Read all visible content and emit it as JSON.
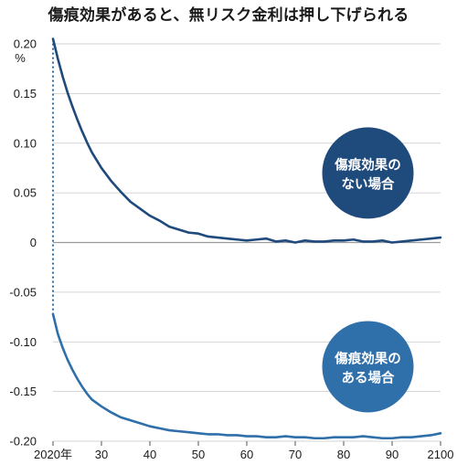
{
  "chart_data": {
    "type": "line",
    "title": "傷痕効果があると、無リスク金利は押し下げられる",
    "yunit": "%",
    "ylim": [
      -0.2,
      0.2
    ],
    "xlim": [
      2020,
      2100
    ],
    "yticks": [
      0.2,
      0.15,
      0.1,
      0.05,
      0,
      -0.05,
      -0.1,
      -0.15,
      -0.2
    ],
    "ytick_labels": [
      "0.20",
      "0.15",
      "0.10",
      "0.05",
      "0",
      "-0.05",
      "-0.10",
      "-0.15",
      "-0.20"
    ],
    "xticks": [
      2020,
      2030,
      2040,
      2050,
      2060,
      2070,
      2080,
      2090,
      2100
    ],
    "xtick_labels": [
      "2020年",
      "30",
      "40",
      "50",
      "60",
      "70",
      "80",
      "90",
      "2100"
    ],
    "grid": true,
    "series": [
      {
        "name": "傷痕効果のない場合",
        "color": "#1f4a7c",
        "x": [
          2020,
          2021,
          2022,
          2023,
          2024,
          2025,
          2026,
          2027,
          2028,
          2030,
          2032,
          2034,
          2036,
          2038,
          2040,
          2042,
          2044,
          2046,
          2048,
          2050,
          2052,
          2054,
          2056,
          2058,
          2060,
          2062,
          2064,
          2066,
          2068,
          2070,
          2072,
          2074,
          2076,
          2078,
          2080,
          2082,
          2084,
          2086,
          2088,
          2090,
          2092,
          2094,
          2096,
          2098,
          2100
        ],
        "values": [
          0.205,
          0.185,
          0.167,
          0.151,
          0.137,
          0.124,
          0.112,
          0.101,
          0.091,
          0.075,
          0.062,
          0.051,
          0.041,
          0.034,
          0.027,
          0.022,
          0.016,
          0.013,
          0.01,
          0.009,
          0.006,
          0.005,
          0.004,
          0.003,
          0.002,
          0.003,
          0.004,
          0.001,
          0.002,
          0.0,
          0.002,
          0.001,
          0.001,
          0.002,
          0.002,
          0.003,
          0.001,
          0.001,
          0.002,
          0.0,
          0.001,
          0.002,
          0.003,
          0.004,
          0.005
        ]
      },
      {
        "name": "傷痕効果のある場合",
        "color": "#2f6faa",
        "x": [
          2020,
          2021,
          2022,
          2023,
          2024,
          2025,
          2026,
          2027,
          2028,
          2030,
          2032,
          2034,
          2036,
          2038,
          2040,
          2042,
          2044,
          2046,
          2048,
          2050,
          2052,
          2054,
          2056,
          2058,
          2060,
          2062,
          2064,
          2066,
          2068,
          2070,
          2072,
          2074,
          2076,
          2078,
          2080,
          2082,
          2084,
          2086,
          2088,
          2090,
          2092,
          2094,
          2096,
          2098,
          2100
        ],
        "values": [
          -0.072,
          -0.092,
          -0.106,
          -0.118,
          -0.128,
          -0.137,
          -0.145,
          -0.152,
          -0.158,
          -0.165,
          -0.171,
          -0.176,
          -0.179,
          -0.182,
          -0.185,
          -0.187,
          -0.189,
          -0.19,
          -0.191,
          -0.192,
          -0.193,
          -0.193,
          -0.194,
          -0.194,
          -0.195,
          -0.195,
          -0.196,
          -0.196,
          -0.195,
          -0.196,
          -0.196,
          -0.197,
          -0.197,
          -0.196,
          -0.196,
          -0.196,
          -0.195,
          -0.196,
          -0.197,
          -0.197,
          -0.196,
          -0.196,
          -0.195,
          -0.194,
          -0.192
        ]
      }
    ],
    "annotations": [
      {
        "name": "bubble-no-scar",
        "lines": [
          "傷痕効果の",
          "ない場合"
        ],
        "color": "#1f4a7c",
        "x": 2085,
        "y": 0.07
      },
      {
        "name": "bubble-scar",
        "lines": [
          "傷痕効果の",
          "ある場合"
        ],
        "color": "#2f6faa",
        "x": 2085,
        "y": -0.125
      }
    ],
    "connector": {
      "x": 2020,
      "from": 0.205,
      "to": -0.072,
      "style": "dotted",
      "color": "#2f6faa"
    }
  }
}
